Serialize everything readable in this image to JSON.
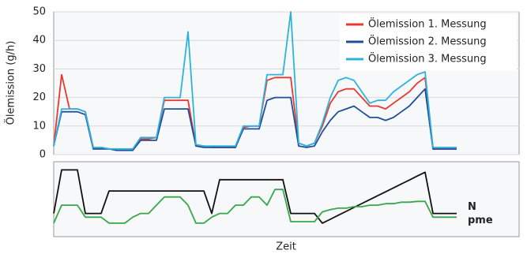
{
  "chart_data": [
    {
      "type": "line",
      "ylabel": "Ölemission (g/h)",
      "categories": [
        null,
        null,
        null,
        null,
        null,
        null,
        null,
        null,
        null,
        null,
        null,
        null,
        null,
        null,
        null,
        null,
        null,
        null,
        null,
        null,
        null,
        null,
        null,
        null,
        null,
        null,
        null,
        null,
        null,
        null,
        null,
        null,
        null,
        null,
        null,
        null,
        null,
        null,
        null,
        null,
        null,
        null,
        null,
        null,
        null,
        null,
        null,
        null,
        null,
        null,
        null,
        null,
        null,
        null,
        null,
        null,
        null,
        null,
        null,
        null
      ],
      "ylim": [
        0,
        50
      ],
      "yticks": [
        0,
        10,
        20,
        30,
        40,
        50
      ],
      "grid": true,
      "legend": "upper right",
      "series": [
        {
          "name": "Ölemission 1. Messung",
          "color": "#e8392e",
          "values": [
            3,
            28,
            16,
            16,
            15,
            2.5,
            2.5,
            2,
            1.5,
            1.5,
            1.5,
            5.5,
            5.5,
            6,
            19,
            19,
            19,
            19,
            3,
            3,
            2.5,
            2.5,
            2.5,
            2.5,
            9.5,
            10,
            10,
            26,
            27,
            27,
            27,
            4,
            3,
            4,
            10,
            18,
            22,
            23,
            23,
            20,
            17,
            17,
            16,
            18,
            20,
            22,
            25,
            27,
            2,
            2,
            2,
            2,
            null,
            null,
            null,
            null,
            null,
            null,
            null,
            null
          ]
        },
        {
          "name": "Ölemission 2. Messung",
          "color": "#1f4e9c",
          "values": [
            3,
            15,
            15,
            15,
            14,
            2,
            2,
            2,
            1.5,
            1.5,
            1.5,
            5,
            5,
            5,
            16,
            16,
            16,
            16,
            3,
            2.5,
            2.5,
            2.5,
            2.5,
            2.5,
            9,
            9,
            9,
            19,
            20,
            20,
            20,
            3,
            2.5,
            3,
            8,
            12,
            15,
            16,
            17,
            15,
            13,
            13,
            12,
            13,
            15,
            17,
            20,
            23,
            2,
            2,
            2,
            2,
            null,
            null,
            null,
            null,
            null,
            null,
            null,
            null
          ]
        },
        {
          "name": "Ölemission 3. Messung",
          "color": "#2fb3dc",
          "values": [
            3,
            16,
            16,
            16,
            15,
            2.5,
            2.5,
            2,
            2,
            2,
            2,
            6,
            6,
            6,
            20,
            20,
            20,
            43,
            3.5,
            3,
            3,
            3,
            3,
            3,
            10,
            10,
            10,
            28,
            28,
            28,
            50,
            4,
            3,
            4,
            11,
            20,
            26,
            27,
            26,
            22,
            18,
            19,
            19,
            22,
            24,
            26,
            28,
            29,
            2.5,
            2.5,
            2.5,
            2.5,
            null,
            null,
            null,
            null,
            null,
            null,
            null,
            null
          ]
        }
      ]
    },
    {
      "type": "line",
      "xlabel": "Zeit",
      "categories": [
        null,
        null,
        null,
        null,
        null,
        null,
        null,
        null,
        null,
        null,
        null,
        null,
        null,
        null,
        null,
        null,
        null,
        null,
        null,
        null,
        null,
        null,
        null,
        null,
        null,
        null,
        null,
        null,
        null,
        null,
        null,
        null,
        null,
        null,
        null,
        null,
        null,
        null,
        null,
        null,
        null,
        null,
        null,
        null,
        null,
        null,
        null,
        null,
        null,
        null,
        null,
        null,
        null,
        null,
        null,
        null,
        null,
        null,
        null,
        null
      ],
      "ylim": [
        0,
        100
      ],
      "legend": "line end",
      "series": [
        {
          "name": "N",
          "color": "#111111",
          "values": [
            31,
            89,
            89,
            89,
            31,
            31,
            31,
            61,
            61,
            61,
            61,
            61,
            61,
            61,
            61,
            61,
            61,
            61,
            61,
            61,
            31,
            76,
            76,
            76,
            76,
            76,
            76,
            76,
            76,
            76,
            31,
            31,
            31,
            31,
            18,
            23.2,
            28.5,
            33.7,
            38.9,
            44.2,
            49.4,
            54.6,
            59.8,
            65.1,
            70.3,
            75.5,
            80.8,
            86,
            31,
            31,
            31,
            31,
            null,
            null,
            null,
            null,
            null,
            null,
            null,
            null
          ]
        },
        {
          "name": "pme",
          "color": "#3aa64a",
          "values": [
            18,
            42,
            42,
            42,
            26,
            26,
            26,
            18,
            18,
            18,
            26,
            31,
            31,
            42,
            53,
            53,
            53,
            42,
            18,
            18,
            26,
            31,
            31,
            42,
            42,
            53,
            53,
            42,
            63,
            63,
            20,
            20,
            20,
            20,
            33,
            36,
            38,
            38,
            40,
            40,
            42,
            42,
            44,
            44,
            46,
            46,
            47,
            47,
            26,
            26,
            26,
            26,
            null,
            null,
            null,
            null,
            null,
            null,
            null,
            null
          ]
        }
      ]
    }
  ]
}
